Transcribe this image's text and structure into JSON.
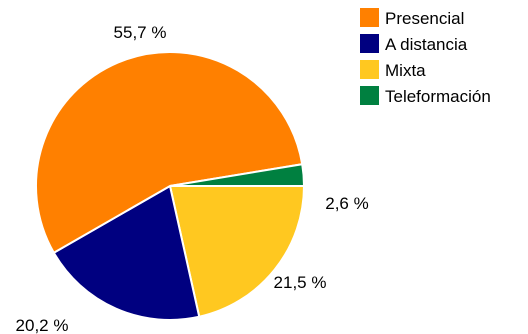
{
  "chart_data": {
    "type": "pie",
    "slices": [
      {
        "label": "Presencial",
        "value": 55.7,
        "value_label": "55,7 %",
        "color": "#ff8000"
      },
      {
        "label": "A distancia",
        "value": 20.2,
        "value_label": "20,2 %",
        "color": "#000080"
      },
      {
        "label": "Mixta",
        "value": 21.5,
        "value_label": "21,5 %",
        "color": "#ffc820"
      },
      {
        "label": "Teleformación",
        "value": 2.6,
        "value_label": "2,6 %",
        "color": "#008040"
      }
    ],
    "legend_position": "top-right",
    "title": ""
  }
}
